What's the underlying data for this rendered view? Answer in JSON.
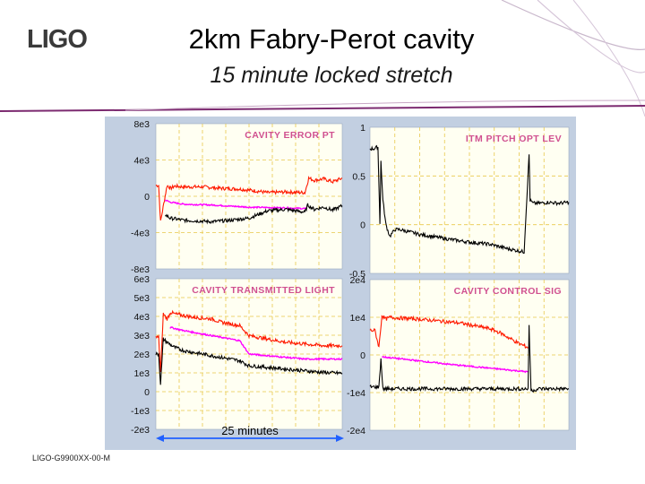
{
  "logo_text": "LIGO",
  "title": "2km Fabry-Perot cavity",
  "subtitle": "15 minute locked stretch",
  "footer": "LIGO-G9900XX-00-M",
  "colors": {
    "panel_bg": "#fffff2",
    "frame_bg": "#c2cfe1",
    "grid": "#e8c84a",
    "red": "#ff1a00",
    "black": "#000000",
    "magenta": "#ff00ff",
    "title_text": "#d05090",
    "arrow": "#2060ff"
  },
  "chart_data": [
    {
      "type": "line",
      "title": "CAVITY ERROR PT",
      "x_range": [
        0,
        20
      ],
      "ylim": [
        -10000,
        10000
      ],
      "yticks": [
        "8e3",
        "4e3",
        "0",
        "-4e3",
        "-8e3"
      ],
      "series": [
        {
          "color": "red",
          "x": [
            0,
            0.3,
            0.5,
            1.2,
            1.6,
            2,
            3,
            5,
            7,
            9,
            11,
            12,
            14,
            16,
            16.4,
            17,
            18,
            19,
            20
          ],
          "y": [
            1500,
            1500,
            -3500,
            1500,
            1100,
            1400,
            1300,
            1300,
            1100,
            1000,
            700,
            500,
            600,
            500,
            2500,
            2200,
            2400,
            2000,
            2500
          ]
        },
        {
          "color": "magenta",
          "x": [
            1.0,
            1.5,
            3,
            6,
            10,
            14,
            16.2
          ],
          "y": [
            -500,
            -800,
            -1100,
            -1200,
            -1500,
            -1600,
            -1700
          ]
        },
        {
          "color": "black",
          "x": [
            1.0,
            1.5,
            3,
            6,
            8,
            10,
            11,
            12,
            14,
            16,
            16.3,
            17,
            18,
            19,
            20
          ],
          "y": [
            -2500,
            -3000,
            -3300,
            -3500,
            -3300,
            -3000,
            -2500,
            -2000,
            -1800,
            -2200,
            -1200,
            -1800,
            -1500,
            -1900,
            -1300
          ]
        }
      ]
    },
    {
      "type": "line",
      "title": "ITM PITCH OPT LEV",
      "x_range": [
        0,
        20
      ],
      "ylim": [
        -0.5,
        1
      ],
      "yticks": [
        "1",
        "0.5",
        "0",
        "-0.5"
      ],
      "series": [
        {
          "color": "black",
          "x": [
            0,
            0.4,
            0.8,
            1.0,
            1.1,
            1.3,
            1.6,
            2.0,
            2.5,
            3,
            5,
            8,
            10,
            12,
            14,
            15.5,
            16.0,
            16.1,
            16.4,
            17,
            18,
            19,
            20
          ],
          "y": [
            0.78,
            0.78,
            0.8,
            0.02,
            0.65,
            0.25,
            0.0,
            -0.12,
            -0.05,
            -0.05,
            -0.1,
            -0.15,
            -0.18,
            -0.2,
            -0.25,
            -0.28,
            0.72,
            0.25,
            0.22,
            0.22,
            0.23,
            0.22,
            0.23
          ]
        }
      ]
    },
    {
      "type": "line",
      "title": "CAVITY TRANSMITTED LIGHT",
      "x_range": [
        0,
        20
      ],
      "ylim": [
        -3000,
        6000
      ],
      "yticks": [
        "6e3",
        "5e3",
        "4e3",
        "3e3",
        "2e3",
        "1e3",
        "0",
        "-1e3",
        "-2e3"
      ],
      "series": [
        {
          "color": "red",
          "x": [
            0,
            0.3,
            0.5,
            0.8,
            1.2,
            1.6,
            2,
            3,
            4,
            6,
            7,
            8,
            9,
            10,
            11,
            12,
            14,
            16,
            18,
            20
          ],
          "y": [
            2500,
            2500,
            400,
            3900,
            3600,
            4000,
            3900,
            3800,
            3700,
            3600,
            3400,
            3300,
            3200,
            2600,
            2500,
            2400,
            2200,
            2100,
            2000,
            2000
          ]
        },
        {
          "color": "magenta",
          "x": [
            1.5,
            3,
            5,
            7,
            9,
            10,
            12,
            14,
            16,
            18,
            20
          ],
          "y": [
            3100,
            2900,
            2700,
            2500,
            2300,
            1500,
            1400,
            1300,
            1200,
            1200,
            1200
          ]
        },
        {
          "color": "black",
          "x": [
            0,
            0.3,
            0.5,
            0.8,
            1.2,
            2,
            3,
            5,
            7,
            9,
            10,
            12,
            14,
            16,
            18,
            20
          ],
          "y": [
            1500,
            1500,
            -300,
            2400,
            2200,
            1900,
            1700,
            1500,
            1300,
            1100,
            800,
            700,
            600,
            500,
            400,
            350
          ]
        }
      ]
    },
    {
      "type": "line",
      "title": "CAVITY CONTROL SIG",
      "x_range": [
        0,
        20
      ],
      "ylim": [
        -20000,
        20000
      ],
      "yticks": [
        "2e4",
        "1e4",
        "0",
        "-1e4",
        "-2e4"
      ],
      "series": [
        {
          "color": "red",
          "x": [
            0,
            0.5,
            0.9,
            1.2,
            1.6,
            2,
            3,
            5,
            7,
            9,
            11,
            12,
            13,
            14,
            15,
            15.9
          ],
          "y": [
            6500,
            6500,
            2000,
            10500,
            9500,
            10000,
            9800,
            9500,
            9000,
            8500,
            7500,
            7000,
            6000,
            4500,
            3000,
            2000
          ]
        },
        {
          "color": "magenta",
          "x": [
            1.2,
            4,
            8,
            12,
            15.9
          ],
          "y": [
            -500,
            -1300,
            -2500,
            -3500,
            -4500
          ]
        },
        {
          "color": "black",
          "x": [
            0,
            0.9,
            1.1,
            1.3,
            1.6,
            3,
            8,
            12,
            15.9,
            16.0,
            16.2,
            17,
            18,
            20
          ],
          "y": [
            -8500,
            -8500,
            -1000,
            -9000,
            -9000,
            -9000,
            -9000,
            -9000,
            -9000,
            7500,
            -9500,
            -9000,
            -9000,
            -9000
          ]
        }
      ]
    }
  ],
  "x_annotation": "25 minutes"
}
